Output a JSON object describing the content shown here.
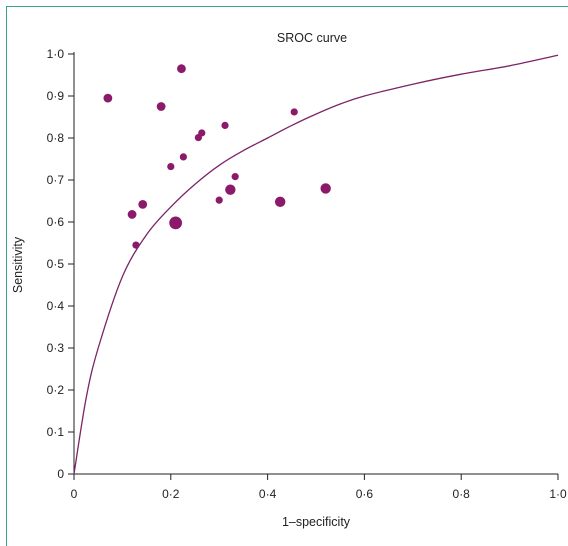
{
  "chart_data": {
    "type": "scatter",
    "title": "SROC curve",
    "xlabel": "1–specificity",
    "ylabel": "Sensitivity",
    "xlim": [
      0,
      1
    ],
    "ylim": [
      0,
      1
    ],
    "xticks": [
      "0",
      "0·2",
      "0·4",
      "0·6",
      "0·8",
      "1·0"
    ],
    "yticks": [
      "0",
      "0·1",
      "0·2",
      "0·3",
      "0·4",
      "0·5",
      "0·6",
      "0·7",
      "0·8",
      "0·9",
      "1·0"
    ],
    "grid": false,
    "colors": {
      "points": "#8b1a6b",
      "curve": "#7b2468",
      "axis": "#222222",
      "frame": "#3aa58c"
    },
    "points": [
      {
        "x": 0.07,
        "y": 0.895,
        "size": "medium"
      },
      {
        "x": 0.18,
        "y": 0.875,
        "size": "medium"
      },
      {
        "x": 0.222,
        "y": 0.965,
        "size": "medium"
      },
      {
        "x": 0.2,
        "y": 0.732,
        "size": "small"
      },
      {
        "x": 0.226,
        "y": 0.755,
        "size": "small"
      },
      {
        "x": 0.257,
        "y": 0.801,
        "size": "small"
      },
      {
        "x": 0.264,
        "y": 0.812,
        "size": "small"
      },
      {
        "x": 0.312,
        "y": 0.83,
        "size": "small"
      },
      {
        "x": 0.455,
        "y": 0.862,
        "size": "small"
      },
      {
        "x": 0.333,
        "y": 0.708,
        "size": "small"
      },
      {
        "x": 0.3,
        "y": 0.652,
        "size": "small"
      },
      {
        "x": 0.323,
        "y": 0.677,
        "size": "large"
      },
      {
        "x": 0.12,
        "y": 0.618,
        "size": "medium"
      },
      {
        "x": 0.142,
        "y": 0.642,
        "size": "medium"
      },
      {
        "x": 0.128,
        "y": 0.545,
        "size": "small"
      },
      {
        "x": 0.21,
        "y": 0.598,
        "size": "xlarge"
      },
      {
        "x": 0.426,
        "y": 0.648,
        "size": "large"
      },
      {
        "x": 0.52,
        "y": 0.68,
        "size": "large"
      }
    ],
    "curve": [
      {
        "x": 0,
        "y": 0
      },
      {
        "x": 0.025,
        "y": 0.18
      },
      {
        "x": 0.05,
        "y": 0.3
      },
      {
        "x": 0.1,
        "y": 0.47
      },
      {
        "x": 0.15,
        "y": 0.57
      },
      {
        "x": 0.2,
        "y": 0.636
      },
      {
        "x": 0.25,
        "y": 0.69
      },
      {
        "x": 0.3,
        "y": 0.735
      },
      {
        "x": 0.35,
        "y": 0.77
      },
      {
        "x": 0.4,
        "y": 0.8
      },
      {
        "x": 0.45,
        "y": 0.83
      },
      {
        "x": 0.5,
        "y": 0.857
      },
      {
        "x": 0.55,
        "y": 0.881
      },
      {
        "x": 0.6,
        "y": 0.9
      },
      {
        "x": 0.7,
        "y": 0.928
      },
      {
        "x": 0.8,
        "y": 0.952
      },
      {
        "x": 0.9,
        "y": 0.972
      },
      {
        "x": 1.0,
        "y": 0.997
      }
    ]
  }
}
